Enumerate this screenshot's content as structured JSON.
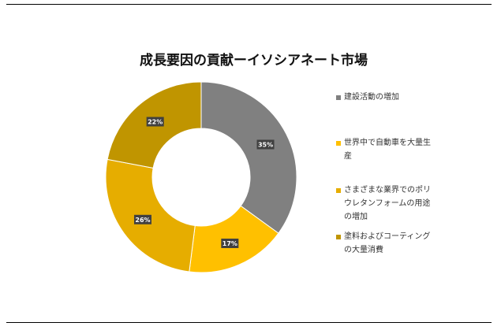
{
  "chart_data": {
    "type": "pie",
    "title": "成長要因の貢献ーイソシアネート市場",
    "categories": [
      "建設活動の増加",
      "世界中で自動車を大量生産",
      "さまざまな業界でのポリウレタンフォームの用途の増加",
      "塗料およびコーティングの大量消費"
    ],
    "legend_lines": [
      [
        "建設活動の増加"
      ],
      [
        "世界中で自動車を大量生",
        "産"
      ],
      [
        "さまざまな業界でのポリ",
        "ウレタンフォームの用途",
        "の増加"
      ],
      [
        "塗料およびコーティング",
        "の大量消費"
      ]
    ],
    "values": [
      35,
      17,
      26,
      22
    ],
    "data_labels": [
      "35%",
      "17%",
      "26%",
      "22%"
    ],
    "colors": [
      "#808080",
      "#FFC000",
      "#E6AD00",
      "#C09500"
    ],
    "legend_position": "right",
    "donut": true
  }
}
